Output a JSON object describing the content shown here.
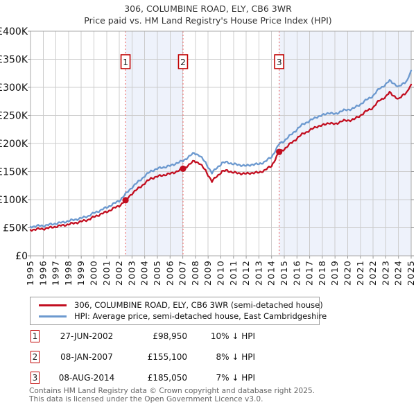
{
  "page": {
    "footer_line1": "Contains HM Land Registry data © Crown copyright and database right 2025.",
    "footer_line2": "This data is licensed under the Open Government Licence v3.0."
  },
  "chart_data": {
    "type": "line",
    "title": "306, COLUMBINE ROAD, ELY, CB6 3WR",
    "subtitle": "Price paid vs. HM Land Registry's House Price Index (HPI)",
    "xlabel": "",
    "ylabel": "",
    "x_range": [
      1995,
      2025
    ],
    "y_range": [
      0,
      400000
    ],
    "grid": true,
    "legend_position": "bottom",
    "x_ticks": [
      1995,
      1996,
      1997,
      1998,
      1999,
      2000,
      2001,
      2002,
      2003,
      2004,
      2005,
      2006,
      2007,
      2008,
      2009,
      2010,
      2011,
      2012,
      2013,
      2014,
      2015,
      2016,
      2017,
      2018,
      2019,
      2020,
      2021,
      2022,
      2023,
      2024,
      2025
    ],
    "y_ticks": [
      {
        "value": 0,
        "label": "£0"
      },
      {
        "value": 50000,
        "label": "£50K"
      },
      {
        "value": 100000,
        "label": "£100K"
      },
      {
        "value": 150000,
        "label": "£150K"
      },
      {
        "value": 200000,
        "label": "£200K"
      },
      {
        "value": 250000,
        "label": "£250K"
      },
      {
        "value": 300000,
        "label": "£300K"
      },
      {
        "value": 350000,
        "label": "£350K"
      },
      {
        "value": 400000,
        "label": "£400K"
      }
    ],
    "colors": {
      "grid": "#cccccc",
      "plot_border": "#aaaaaa",
      "tick": "#999999",
      "shade": "#eef2fb",
      "dashed_marker_line": "#ee7777",
      "marker_box_border": "#c00000"
    },
    "shaded_spans": [
      [
        2002.49,
        2007.02
      ],
      [
        2014.6,
        2025
      ]
    ],
    "series": [
      {
        "name": "306, COLUMBINE ROAD, ELY, CB6 3WR (semi-detached house)",
        "color": "#c20e20",
        "points": [
          [
            1995,
            46000
          ],
          [
            1995.5,
            47500
          ],
          [
            1996,
            48000
          ],
          [
            1996.5,
            50000
          ],
          [
            1997,
            52000
          ],
          [
            1997.5,
            54000
          ],
          [
            1998,
            56000
          ],
          [
            1998.5,
            58500
          ],
          [
            1999,
            61000
          ],
          [
            1999.5,
            64000
          ],
          [
            2000,
            69000
          ],
          [
            2000.5,
            74000
          ],
          [
            2001,
            78000
          ],
          [
            2001.5,
            84000
          ],
          [
            2002,
            89000
          ],
          [
            2002.49,
            98950
          ],
          [
            2003,
            111000
          ],
          [
            2003.5,
            120000
          ],
          [
            2004,
            129000
          ],
          [
            2004.5,
            138000
          ],
          [
            2005,
            141000
          ],
          [
            2005.5,
            144000
          ],
          [
            2006,
            146000
          ],
          [
            2006.5,
            150000
          ],
          [
            2007.02,
            155100
          ],
          [
            2007.5,
            162000
          ],
          [
            2007.9,
            169000
          ],
          [
            2008.3,
            165000
          ],
          [
            2008.8,
            152000
          ],
          [
            2009.3,
            132000
          ],
          [
            2009.6,
            140000
          ],
          [
            2010.1,
            150000
          ],
          [
            2010.5,
            152000
          ],
          [
            2011,
            148000
          ],
          [
            2011.5,
            147000
          ],
          [
            2012,
            146000
          ],
          [
            2012.5,
            148000
          ],
          [
            2013,
            148000
          ],
          [
            2013.5,
            153000
          ],
          [
            2014,
            160000
          ],
          [
            2014.6,
            185050
          ],
          [
            2015,
            190000
          ],
          [
            2015.5,
            200000
          ],
          [
            2016,
            209000
          ],
          [
            2016.5,
            218000
          ],
          [
            2017,
            223000
          ],
          [
            2017.5,
            230000
          ],
          [
            2018,
            232000
          ],
          [
            2018.5,
            237000
          ],
          [
            2019,
            234000
          ],
          [
            2019.5,
            240000
          ],
          [
            2020,
            241000
          ],
          [
            2020.5,
            243000
          ],
          [
            2021,
            250000
          ],
          [
            2021.5,
            258000
          ],
          [
            2022,
            264000
          ],
          [
            2022.5,
            277000
          ],
          [
            2023,
            283000
          ],
          [
            2023.3,
            291000
          ],
          [
            2023.6,
            286000
          ],
          [
            2024,
            278000
          ],
          [
            2024.4,
            288000
          ],
          [
            2024.7,
            292000
          ],
          [
            2025,
            305000
          ]
        ]
      },
      {
        "name": "HPI: Average price, semi-detached house, East Cambridgeshire",
        "color": "#6c99cf",
        "points": [
          [
            1995,
            52000
          ],
          [
            1995.5,
            53000
          ],
          [
            1996,
            53500
          ],
          [
            1996.5,
            55500
          ],
          [
            1997,
            57500
          ],
          [
            1997.5,
            59500
          ],
          [
            1998,
            62000
          ],
          [
            1998.5,
            64500
          ],
          [
            1999,
            67000
          ],
          [
            1999.5,
            70500
          ],
          [
            2000,
            76000
          ],
          [
            2000.5,
            81000
          ],
          [
            2001,
            86000
          ],
          [
            2001.5,
            92000
          ],
          [
            2002,
            98000
          ],
          [
            2002.49,
            110000
          ],
          [
            2003,
            122000
          ],
          [
            2003.5,
            132000
          ],
          [
            2004,
            142000
          ],
          [
            2004.5,
            151000
          ],
          [
            2005,
            155000
          ],
          [
            2005.5,
            158000
          ],
          [
            2006,
            160000
          ],
          [
            2006.5,
            165000
          ],
          [
            2007.02,
            169000
          ],
          [
            2007.5,
            177000
          ],
          [
            2007.9,
            183000
          ],
          [
            2008.3,
            179000
          ],
          [
            2008.8,
            166000
          ],
          [
            2009.3,
            147000
          ],
          [
            2009.6,
            155000
          ],
          [
            2010.1,
            165000
          ],
          [
            2010.5,
            167000
          ],
          [
            2011,
            163000
          ],
          [
            2011.5,
            162000
          ],
          [
            2012,
            160000
          ],
          [
            2012.5,
            163000
          ],
          [
            2013,
            163000
          ],
          [
            2013.5,
            168000
          ],
          [
            2014,
            176000
          ],
          [
            2014.6,
            199000
          ],
          [
            2015,
            205000
          ],
          [
            2015.5,
            215000
          ],
          [
            2016,
            225000
          ],
          [
            2016.5,
            235000
          ],
          [
            2017,
            240000
          ],
          [
            2017.5,
            247000
          ],
          [
            2018,
            250000
          ],
          [
            2018.5,
            255000
          ],
          [
            2019,
            252000
          ],
          [
            2019.5,
            258000
          ],
          [
            2020,
            260000
          ],
          [
            2020.5,
            263000
          ],
          [
            2021,
            270000
          ],
          [
            2021.5,
            278000
          ],
          [
            2022,
            285000
          ],
          [
            2022.5,
            298000
          ],
          [
            2023,
            305000
          ],
          [
            2023.3,
            312000
          ],
          [
            2023.6,
            308000
          ],
          [
            2024,
            300000
          ],
          [
            2024.4,
            308000
          ],
          [
            2024.7,
            312000
          ],
          [
            2025,
            330000
          ]
        ]
      }
    ],
    "sale_points": [
      {
        "label": "1",
        "x": 2002.49,
        "price": 98950
      },
      {
        "label": "2",
        "x": 2007.02,
        "price": 155100
      },
      {
        "label": "3",
        "x": 2014.6,
        "price": 185050
      }
    ]
  },
  "transactions": [
    {
      "marker": "1",
      "date": "27-JUN-2002",
      "price": "£98,950",
      "vs_hpi": "10% ↓ HPI"
    },
    {
      "marker": "2",
      "date": "08-JAN-2007",
      "price": "£155,100",
      "vs_hpi": "8% ↓ HPI"
    },
    {
      "marker": "3",
      "date": "08-AUG-2014",
      "price": "£185,050",
      "vs_hpi": "7% ↓ HPI"
    }
  ]
}
